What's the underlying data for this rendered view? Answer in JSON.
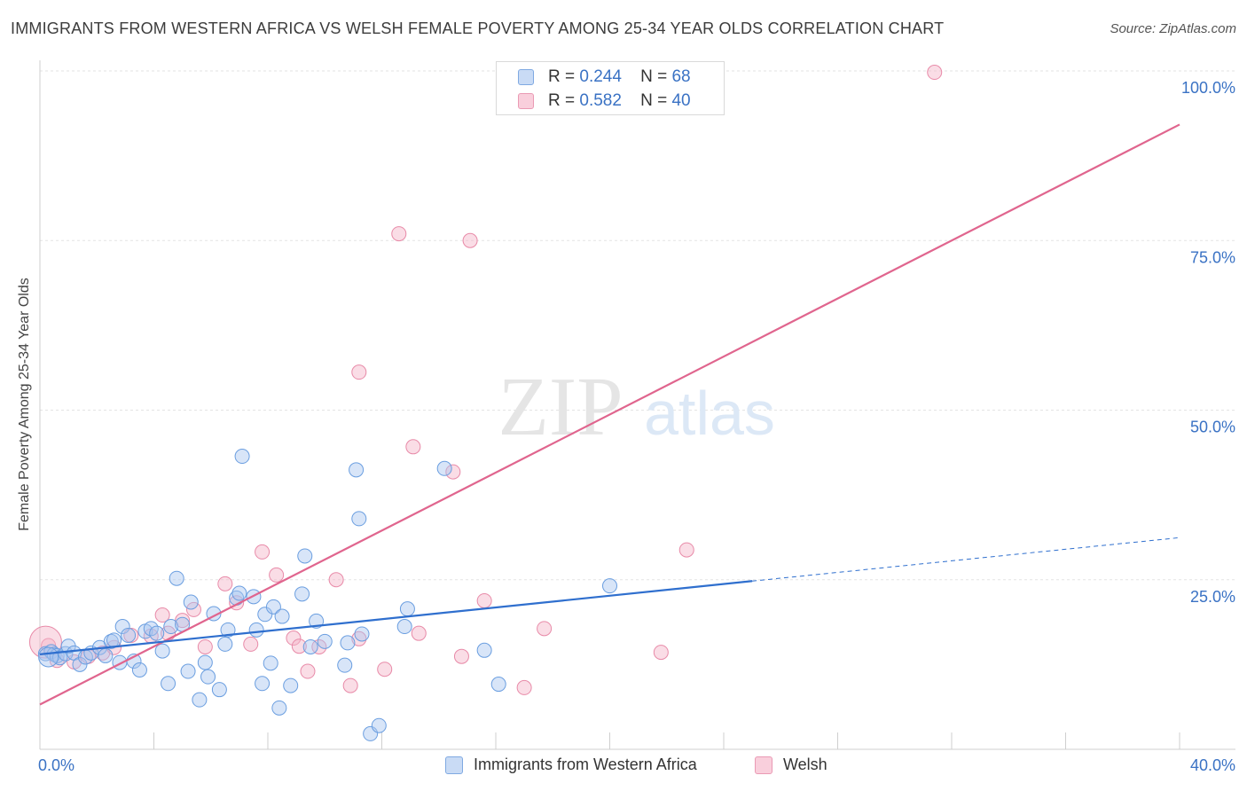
{
  "title": "IMMIGRANTS FROM WESTERN AFRICA VS WELSH FEMALE POVERTY AMONG 25-34 YEAR OLDS CORRELATION CHART",
  "source": "Source: ZipAtlas.com",
  "watermark": {
    "zip": "ZIP",
    "atlas": "atlas"
  },
  "legend": [
    {
      "r_label": "R =",
      "r_value": "0.244",
      "n_label": "N =",
      "n_value": "68",
      "color": "#a9c6ef"
    },
    {
      "r_label": "R =",
      "r_value": "0.582",
      "n_label": "N =",
      "n_value": "40",
      "color": "#f5b4c8"
    }
  ],
  "colors": {
    "blue_fill": "#a9c6ef",
    "blue_stroke": "#6a9ee0",
    "blue_line": "#2f6fce",
    "pink_fill": "#f5b4c8",
    "pink_stroke": "#e88aa8",
    "pink_line": "#e0658e",
    "tick_label": "#3a72c4",
    "grid": "#e3e3e3"
  },
  "chart_data": {
    "type": "scatter",
    "title": "IMMIGRANTS FROM WESTERN AFRICA VS WELSH FEMALE POVERTY AMONG 25-34 YEAR OLDS CORRELATION CHART",
    "xlabel": "",
    "ylabel": "Female Poverty Among 25-34 Year Olds",
    "xlim": [
      0,
      40
    ],
    "ylim": [
      0,
      100
    ],
    "x_tick_labels": [
      "0.0%",
      "40.0%"
    ],
    "y_ticks": [
      25,
      50,
      75,
      100
    ],
    "y_tick_labels": [
      "25.0%",
      "50.0%",
      "75.0%",
      "100.0%"
    ],
    "grid": true,
    "legend_position": "bottom",
    "series": [
      {
        "name": "Immigrants from Western Africa",
        "color": "#a9c6ef",
        "points": [
          [
            0.2,
            14.1
          ],
          [
            0.4,
            14.4
          ],
          [
            0.5,
            14.0
          ],
          [
            0.6,
            13.8
          ],
          [
            0.7,
            13.5
          ],
          [
            0.9,
            14.1
          ],
          [
            1.0,
            15.2
          ],
          [
            1.2,
            14.2
          ],
          [
            1.4,
            12.5
          ],
          [
            1.6,
            13.6
          ],
          [
            1.8,
            14.2
          ],
          [
            2.1,
            15.0
          ],
          [
            2.3,
            13.8
          ],
          [
            2.5,
            15.9
          ],
          [
            2.6,
            16.1
          ],
          [
            2.8,
            12.8
          ],
          [
            2.9,
            18.1
          ],
          [
            3.1,
            16.8
          ],
          [
            3.3,
            13.0
          ],
          [
            3.5,
            11.7
          ],
          [
            3.7,
            17.4
          ],
          [
            3.9,
            17.8
          ],
          [
            4.1,
            17.1
          ],
          [
            4.3,
            14.5
          ],
          [
            4.5,
            9.7
          ],
          [
            4.6,
            18.1
          ],
          [
            4.8,
            25.2
          ],
          [
            5.0,
            18.4
          ],
          [
            5.2,
            11.5
          ],
          [
            5.3,
            21.7
          ],
          [
            5.6,
            7.3
          ],
          [
            5.8,
            12.8
          ],
          [
            5.9,
            10.7
          ],
          [
            6.1,
            20.0
          ],
          [
            6.3,
            8.8
          ],
          [
            6.5,
            15.5
          ],
          [
            6.6,
            17.6
          ],
          [
            6.9,
            22.3
          ],
          [
            7.0,
            23.0
          ],
          [
            7.1,
            43.2
          ],
          [
            7.5,
            22.5
          ],
          [
            7.6,
            17.6
          ],
          [
            7.8,
            9.7
          ],
          [
            7.9,
            19.9
          ],
          [
            8.1,
            12.7
          ],
          [
            8.2,
            21.0
          ],
          [
            8.4,
            6.1
          ],
          [
            8.5,
            19.6
          ],
          [
            8.8,
            9.4
          ],
          [
            9.2,
            22.9
          ],
          [
            9.3,
            28.5
          ],
          [
            9.5,
            15.1
          ],
          [
            9.7,
            18.9
          ],
          [
            10.0,
            15.9
          ],
          [
            10.7,
            12.4
          ],
          [
            10.8,
            15.7
          ],
          [
            11.1,
            41.2
          ],
          [
            11.2,
            34.0
          ],
          [
            11.3,
            17.0
          ],
          [
            11.6,
            2.3
          ],
          [
            11.9,
            3.5
          ],
          [
            12.8,
            18.1
          ],
          [
            12.9,
            20.7
          ],
          [
            14.2,
            41.4
          ],
          [
            15.6,
            14.6
          ],
          [
            16.1,
            9.6
          ],
          [
            20.0,
            24.1
          ],
          [
            0.3,
            13.6
          ]
        ]
      },
      {
        "name": "Welsh",
        "color": "#f5b4c8",
        "points": [
          [
            0.3,
            15.3
          ],
          [
            0.6,
            13.1
          ],
          [
            1.2,
            12.9
          ],
          [
            1.7,
            13.7
          ],
          [
            2.2,
            14.2
          ],
          [
            2.6,
            15.0
          ],
          [
            3.2,
            16.8
          ],
          [
            3.9,
            16.7
          ],
          [
            4.3,
            19.8
          ],
          [
            4.5,
            17.1
          ],
          [
            5.0,
            19.0
          ],
          [
            5.4,
            20.6
          ],
          [
            5.8,
            15.1
          ],
          [
            6.5,
            24.4
          ],
          [
            6.9,
            21.6
          ],
          [
            7.4,
            15.5
          ],
          [
            7.8,
            29.1
          ],
          [
            8.3,
            25.7
          ],
          [
            8.9,
            16.4
          ],
          [
            9.1,
            15.2
          ],
          [
            9.4,
            11.5
          ],
          [
            9.8,
            15.1
          ],
          [
            10.4,
            25.0
          ],
          [
            10.9,
            9.4
          ],
          [
            11.2,
            16.3
          ],
          [
            11.2,
            55.6
          ],
          [
            12.1,
            11.8
          ],
          [
            12.6,
            76.0
          ],
          [
            13.1,
            44.6
          ],
          [
            13.3,
            17.1
          ],
          [
            14.5,
            40.9
          ],
          [
            14.8,
            13.7
          ],
          [
            15.1,
            75.0
          ],
          [
            15.6,
            21.9
          ],
          [
            17.0,
            9.1
          ],
          [
            17.7,
            17.8
          ],
          [
            21.8,
            14.3
          ],
          [
            22.7,
            29.4
          ],
          [
            31.4,
            99.8
          ],
          [
            0.2,
            15.8
          ]
        ]
      }
    ],
    "trend_lines": [
      {
        "series": "Immigrants from Western Africa",
        "x": [
          0,
          25
        ],
        "y": [
          14.0,
          24.8
        ],
        "dashed_extension_to_x": 40,
        "dashed_extension_y": 31.2
      },
      {
        "series": "Welsh",
        "x": [
          0,
          40
        ],
        "y": [
          6.6,
          92.1
        ]
      }
    ]
  }
}
